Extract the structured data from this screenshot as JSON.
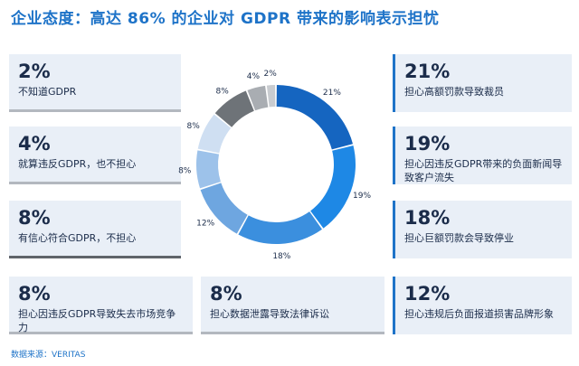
{
  "title": "企业态度：高达 86% 的企业对 GDPR 带来的影响表示担忧",
  "source": "数据来源：VERITAS",
  "cards_left": [
    {
      "pct": "2%",
      "text": "不知道GDPR"
    },
    {
      "pct": "4%",
      "text": "就算违反GDPR，也不担心"
    },
    {
      "pct": "8%",
      "text": "有信心符合GDPR，不担心"
    }
  ],
  "cards_right": [
    {
      "pct": "21%",
      "text": "担心高额罚款导致裁员"
    },
    {
      "pct": "19%",
      "text": "担心因违反GDPR带来的负面新闻导致客户流失"
    },
    {
      "pct": "18%",
      "text": "担心巨额罚款会导致停业"
    }
  ],
  "cards_bottom": [
    {
      "pct": "8%",
      "text": "担心因违反GDPR导致失去市场竞争力"
    },
    {
      "pct": "8%",
      "text": "担心数据泄露导致法律诉讼"
    },
    {
      "pct": "12%",
      "text": "担心违规后负面报道损害品牌形象"
    }
  ],
  "chart_data": {
    "type": "pie",
    "donut": true,
    "slices": [
      {
        "label": "21%",
        "value": 21,
        "color": "#1565c0"
      },
      {
        "label": "19%",
        "value": 19,
        "color": "#1e88e5"
      },
      {
        "label": "18%",
        "value": 18,
        "color": "#3b8fde"
      },
      {
        "label": "12%",
        "value": 12,
        "color": "#6ea6e0"
      },
      {
        "label": "8%",
        "value": 8,
        "color": "#9dc2ea"
      },
      {
        "label": "8%",
        "value": 8,
        "color": "#cfdff2"
      },
      {
        "label": "8%",
        "value": 8,
        "color": "#6e7378"
      },
      {
        "label": "4%",
        "value": 4,
        "color": "#a9adb2"
      },
      {
        "label": "2%",
        "value": 2,
        "color": "#c9ccd0"
      }
    ]
  }
}
